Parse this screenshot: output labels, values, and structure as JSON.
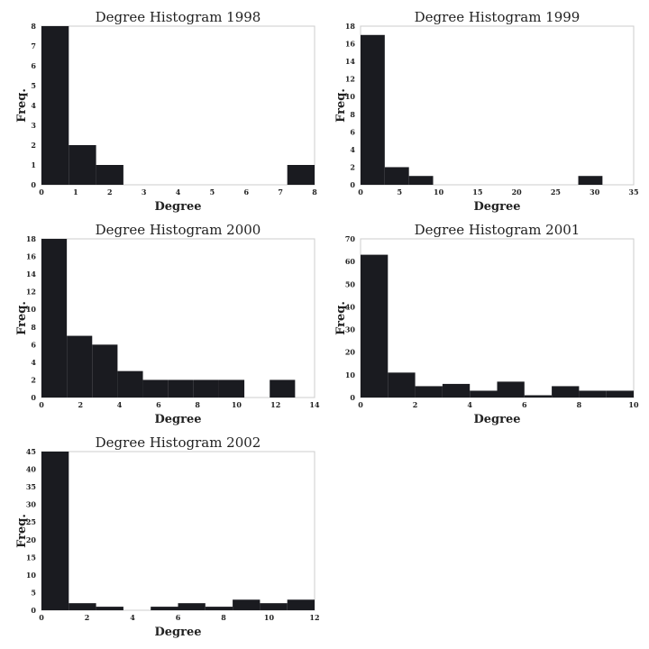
{
  "bar_color": "#1a1b20",
  "chart_data": [
    {
      "type": "bar",
      "title": "Degree Histogram 1998",
      "xlabel": "Degree",
      "ylabel": "Freq.",
      "xlim": [
        0,
        8
      ],
      "ylim": [
        0,
        8
      ],
      "xticks": [
        0,
        1,
        2,
        3,
        4,
        5,
        6,
        7,
        8
      ],
      "yticks": [
        0,
        1,
        2,
        3,
        4,
        5,
        6,
        7,
        8
      ],
      "bins": [
        [
          0,
          0.8
        ],
        [
          0.8,
          1.6
        ],
        [
          1.6,
          2.4
        ],
        [
          2.4,
          3.2
        ],
        [
          3.2,
          4.0
        ],
        [
          4.0,
          4.8
        ],
        [
          4.8,
          5.6
        ],
        [
          5.6,
          6.4
        ],
        [
          6.4,
          7.2
        ],
        [
          7.2,
          8.0
        ]
      ],
      "values": [
        8,
        2,
        1,
        0,
        0,
        0,
        0,
        0,
        0,
        1
      ]
    },
    {
      "type": "bar",
      "title": "Degree Histogram 1999",
      "xlabel": "Degree",
      "ylabel": "Freq.",
      "xlim": [
        0,
        35
      ],
      "ylim": [
        0,
        18
      ],
      "xticks": [
        0,
        5,
        10,
        15,
        20,
        25,
        30,
        35
      ],
      "yticks": [
        0,
        2,
        4,
        6,
        8,
        10,
        12,
        14,
        16,
        18
      ],
      "bins": [
        [
          0,
          3.1
        ],
        [
          3.1,
          6.2
        ],
        [
          6.2,
          9.3
        ],
        [
          9.3,
          12.4
        ],
        [
          12.4,
          15.5
        ],
        [
          15.5,
          18.6
        ],
        [
          18.6,
          21.7
        ],
        [
          21.7,
          24.8
        ],
        [
          24.8,
          27.9
        ],
        [
          27.9,
          31.0
        ]
      ],
      "values": [
        17,
        2,
        1,
        0,
        0,
        0,
        0,
        0,
        0,
        1
      ]
    },
    {
      "type": "bar",
      "title": "Degree Histogram 2000",
      "xlabel": "Degree",
      "ylabel": "Freq.",
      "xlim": [
        0,
        14
      ],
      "ylim": [
        0,
        18
      ],
      "xticks": [
        0,
        2,
        4,
        6,
        8,
        10,
        12,
        14
      ],
      "yticks": [
        0,
        2,
        4,
        6,
        8,
        10,
        12,
        14,
        16,
        18
      ],
      "bins": [
        [
          0,
          1.3
        ],
        [
          1.3,
          2.6
        ],
        [
          2.6,
          3.9
        ],
        [
          3.9,
          5.2
        ],
        [
          5.2,
          6.5
        ],
        [
          6.5,
          7.8
        ],
        [
          7.8,
          9.1
        ],
        [
          9.1,
          10.4
        ],
        [
          10.4,
          11.7
        ],
        [
          11.7,
          13.0
        ]
      ],
      "values": [
        18,
        7,
        6,
        3,
        2,
        2,
        2,
        2,
        0,
        2
      ]
    },
    {
      "type": "bar",
      "title": "Degree Histogram 2001",
      "xlabel": "Degree",
      "ylabel": "Freq.",
      "xlim": [
        0,
        10
      ],
      "ylim": [
        0,
        70
      ],
      "xticks": [
        0,
        2,
        4,
        6,
        8,
        10
      ],
      "yticks": [
        0,
        10,
        20,
        30,
        40,
        50,
        60,
        70
      ],
      "bins": [
        [
          0,
          1
        ],
        [
          1,
          2
        ],
        [
          2,
          3
        ],
        [
          3,
          4
        ],
        [
          4,
          5
        ],
        [
          5,
          6
        ],
        [
          6,
          7
        ],
        [
          7,
          8
        ],
        [
          8,
          9
        ],
        [
          9,
          10
        ]
      ],
      "values": [
        63,
        11,
        5,
        6,
        3,
        7,
        1,
        5,
        3,
        3
      ]
    },
    {
      "type": "bar",
      "title": "Degree Histogram 2002",
      "xlabel": "Degree",
      "ylabel": "Freq.",
      "xlim": [
        0,
        12
      ],
      "ylim": [
        0,
        45
      ],
      "xticks": [
        0,
        2,
        4,
        6,
        8,
        10,
        12
      ],
      "yticks": [
        0,
        5,
        10,
        15,
        20,
        25,
        30,
        35,
        40,
        45
      ],
      "bins": [
        [
          0,
          1.2
        ],
        [
          1.2,
          2.4
        ],
        [
          2.4,
          3.6
        ],
        [
          3.6,
          4.8
        ],
        [
          4.8,
          6.0
        ],
        [
          6.0,
          7.2
        ],
        [
          7.2,
          8.4
        ],
        [
          8.4,
          9.6
        ],
        [
          9.6,
          10.8
        ],
        [
          10.8,
          12.0
        ]
      ],
      "values": [
        45,
        2,
        1,
        0,
        1,
        2,
        1,
        3,
        2,
        3
      ]
    }
  ]
}
